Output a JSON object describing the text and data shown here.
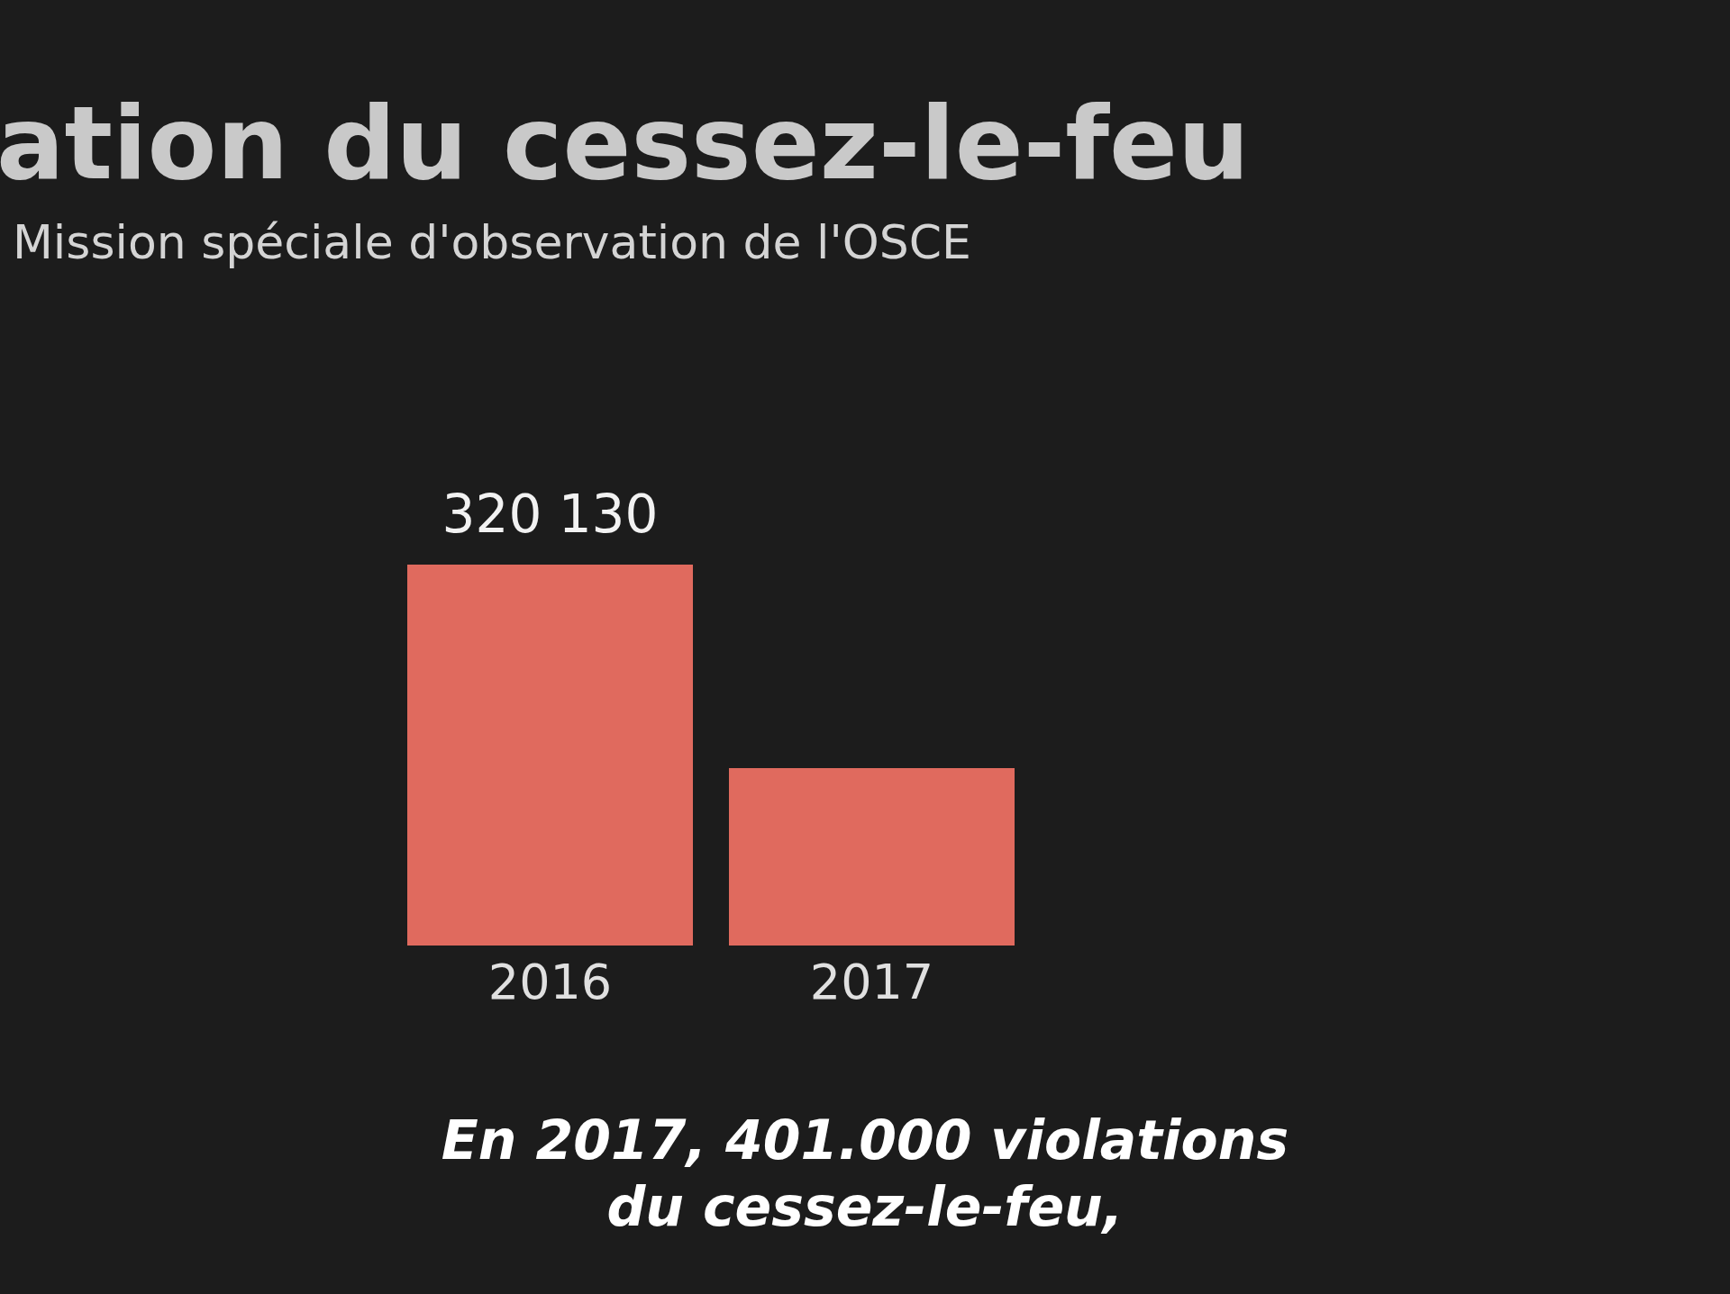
{
  "chart_data": {
    "type": "bar",
    "title": "ation du cessez-le-feu",
    "subtitle": "Mission spéciale d'observation de l'OSCE",
    "categories": [
      "2016",
      "2017"
    ],
    "values": [
      320130,
      149000
    ],
    "ylim": [
      0,
      320130
    ],
    "tick_labels": "x",
    "color": "#e06a5e",
    "value_labels": [
      "320 130",
      null
    ],
    "annotations": [
      "En 2017, 401.000 violations du cessez-le-feu,"
    ]
  }
}
